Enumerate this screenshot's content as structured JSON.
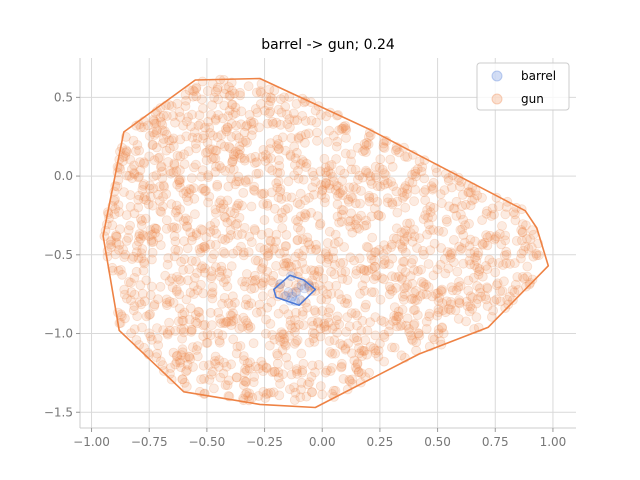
{
  "chart_data": {
    "type": "scatter",
    "title": "barrel -> gun; 0.24",
    "xlabel": "",
    "ylabel": "",
    "xlim": [
      -1.05,
      1.1
    ],
    "ylim": [
      -1.6,
      0.75
    ],
    "xticks": [
      -1.0,
      -0.75,
      -0.5,
      -0.25,
      0.0,
      0.25,
      0.5,
      0.75,
      1.0
    ],
    "xtick_labels": [
      "−1.00",
      "−0.75",
      "−0.50",
      "−0.25",
      "0.00",
      "0.25",
      "0.50",
      "0.75",
      "1.00"
    ],
    "yticks": [
      -1.5,
      -1.0,
      -0.5,
      0.0,
      0.5
    ],
    "ytick_labels": [
      "−1.5",
      "−1.0",
      "−0.5",
      "0.0",
      "0.5"
    ],
    "grid": true,
    "legend_position": "top-right",
    "series": [
      {
        "name": "barrel",
        "color": "#4a78d6",
        "hull": [
          [
            -0.21,
            -0.72
          ],
          [
            -0.14,
            -0.63
          ],
          [
            -0.08,
            -0.66
          ],
          [
            -0.03,
            -0.72
          ],
          [
            -0.1,
            -0.82
          ],
          [
            -0.2,
            -0.77
          ]
        ],
        "point_count": 12
      },
      {
        "name": "gun",
        "color": "#ee8244",
        "hull": [
          [
            -0.55,
            0.61
          ],
          [
            -0.27,
            0.62
          ],
          [
            0.2,
            0.3
          ],
          [
            0.88,
            -0.22
          ],
          [
            0.93,
            -0.33
          ],
          [
            0.98,
            -0.57
          ],
          [
            0.72,
            -0.96
          ],
          [
            0.42,
            -1.13
          ],
          [
            -0.03,
            -1.47
          ],
          [
            -0.27,
            -1.45
          ],
          [
            -0.6,
            -1.37
          ],
          [
            -0.88,
            -0.98
          ],
          [
            -0.95,
            -0.38
          ],
          [
            -0.86,
            0.28
          ]
        ],
        "point_count": 1800
      }
    ]
  }
}
